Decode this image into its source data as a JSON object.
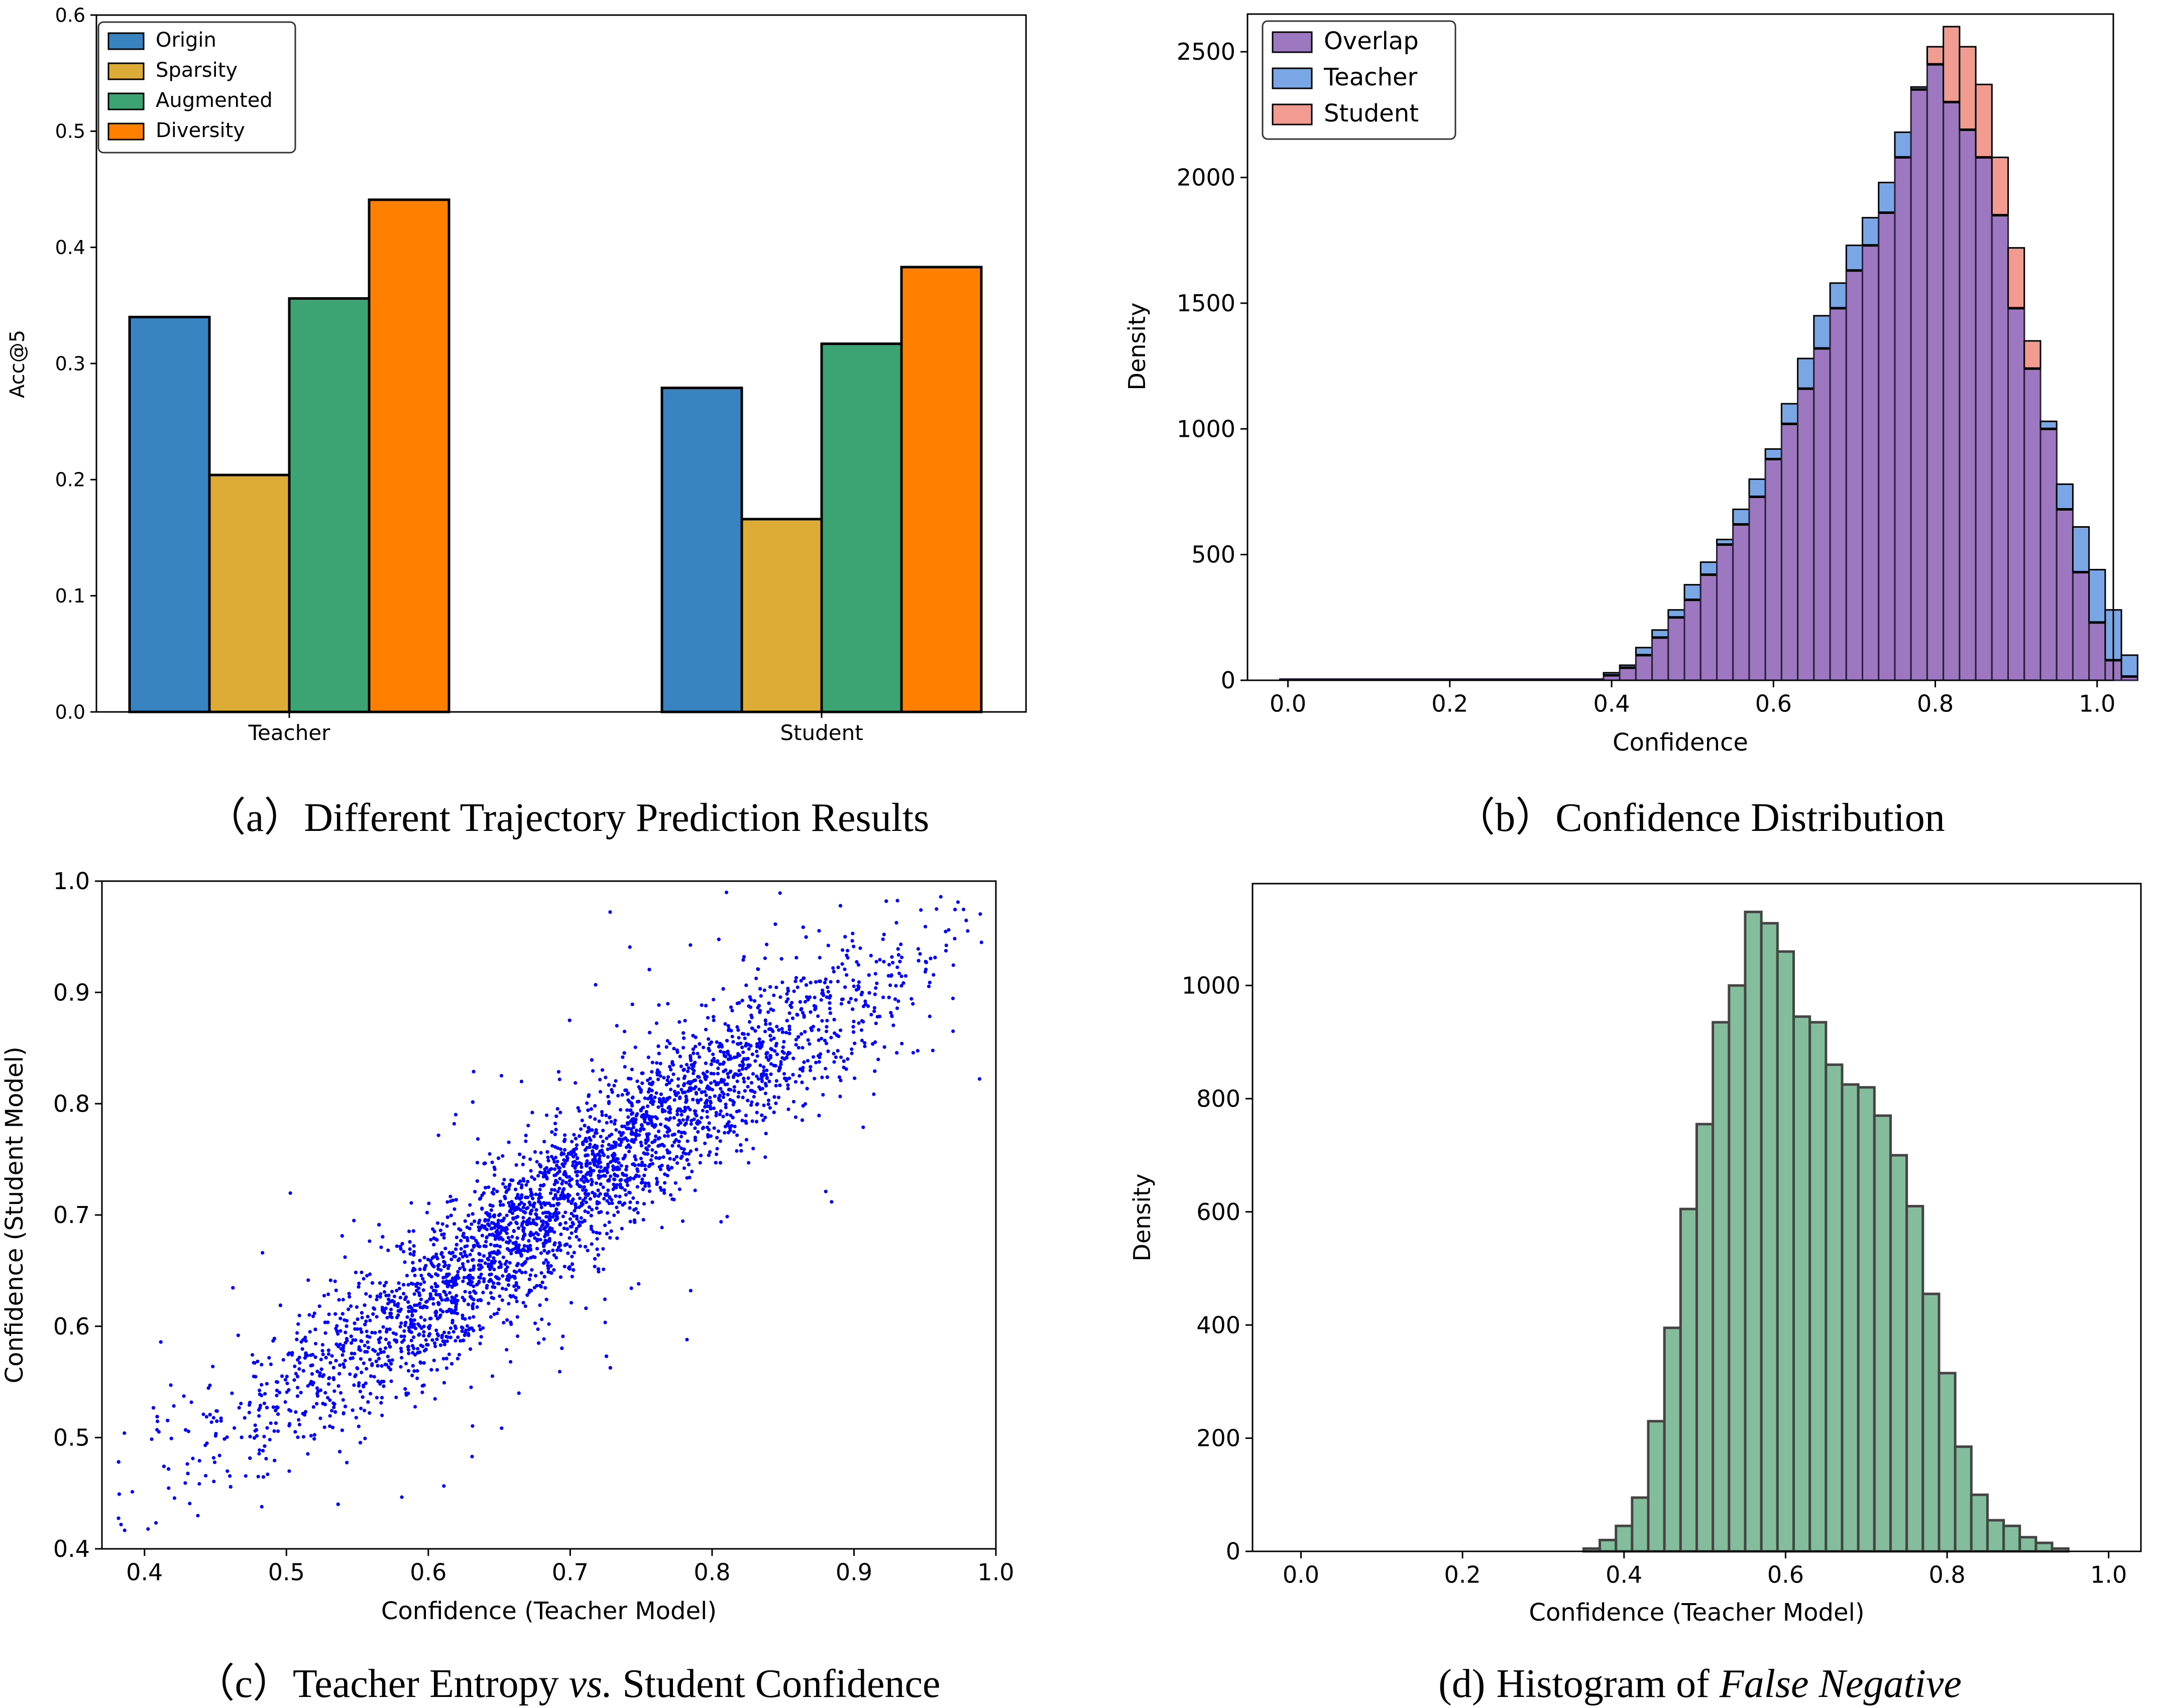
{
  "colors": {
    "origin": "#3a83c1",
    "sparsity": "#dcac36",
    "augmented": "#3ca373",
    "diversity": "#ff8000",
    "overlap": "#9d77c0",
    "teacher": "#7aa6e6",
    "student": "#f29b90",
    "false_negative": "#84bd9c",
    "scatter": "#0000ff"
  },
  "captions": {
    "a": {
      "label": "（a）",
      "text": "Different Trajectory Prediction Results"
    },
    "b": {
      "label": "（b）",
      "text": "Confidence Distribution"
    },
    "c": {
      "label": "（c）",
      "pre": "Teacher Entropy ",
      "italic": "vs.",
      "post": " Student Confidence"
    },
    "d": {
      "label": "(d)",
      "pre": "Histogram of ",
      "italic": "False Negative"
    }
  },
  "chart_data": [
    {
      "id": "a",
      "type": "bar",
      "title": "",
      "xlabel": "",
      "ylabel": "Acc@5",
      "categories": [
        "Teacher",
        "Student"
      ],
      "ylim": [
        0,
        0.6
      ],
      "yticks": [
        "0.0",
        "0.1",
        "0.2",
        "0.3",
        "0.4",
        "0.5",
        "0.6"
      ],
      "legend": "top-left",
      "series": [
        {
          "name": "Origin",
          "values": [
            0.34,
            0.279
          ]
        },
        {
          "name": "Sparsity",
          "values": [
            0.204,
            0.166
          ]
        },
        {
          "name": "Augmented",
          "values": [
            0.356,
            0.317
          ]
        },
        {
          "name": "Diversity",
          "values": [
            0.441,
            0.383
          ]
        }
      ]
    },
    {
      "id": "b",
      "type": "bar",
      "title": "",
      "xlabel": "Confidence",
      "ylabel": "Density",
      "xlim": [
        -0.05,
        1.02
      ],
      "ylim": [
        0,
        2650
      ],
      "xticks": [
        "0.0",
        "0.2",
        "0.4",
        "0.6",
        "0.8",
        "1.0"
      ],
      "yticks": [
        "0",
        "500",
        "1000",
        "1500",
        "2000",
        "2500"
      ],
      "legend": "top-left",
      "legend_entries": [
        "Overlap",
        "Teacher",
        "Student"
      ],
      "bin_start": 0.39,
      "bin_width": 0.02,
      "teacher_low_bins": {
        "start": -0.01,
        "end": 0.39,
        "value": 5
      },
      "series": [
        {
          "name": "Teacher",
          "values": [
            30,
            60,
            130,
            200,
            280,
            380,
            470,
            560,
            680,
            800,
            920,
            1100,
            1280,
            1450,
            1580,
            1730,
            1840,
            1980,
            2180,
            2360,
            2450,
            2300,
            2190,
            2080,
            1850,
            1480,
            1240,
            1030,
            780,
            610,
            440,
            280,
            100
          ]
        },
        {
          "name": "Student",
          "values": [
            20,
            50,
            100,
            170,
            250,
            320,
            420,
            540,
            620,
            730,
            880,
            1020,
            1160,
            1320,
            1480,
            1630,
            1730,
            1860,
            2080,
            2350,
            2520,
            2600,
            2520,
            2370,
            2080,
            1720,
            1350,
            1000,
            680,
            430,
            230,
            80,
            15
          ]
        }
      ]
    },
    {
      "id": "c",
      "type": "scatter",
      "title": "",
      "xlabel": "Confidence (Teacher Model)",
      "ylabel": "Confidence (Student Model)",
      "xlim": [
        0.37,
        1.0
      ],
      "ylim": [
        0.4,
        1.0
      ],
      "xticks": [
        "0.4",
        "0.5",
        "0.6",
        "0.7",
        "0.8",
        "0.9",
        "1.0"
      ],
      "yticks": [
        "0.4",
        "0.5",
        "0.6",
        "0.7",
        "0.8",
        "0.9",
        "1.0"
      ],
      "trend": [
        [
          0.38,
          0.44
        ],
        [
          0.45,
          0.5
        ],
        [
          0.5,
          0.54
        ],
        [
          0.55,
          0.58
        ],
        [
          0.6,
          0.62
        ],
        [
          0.65,
          0.67
        ],
        [
          0.7,
          0.72
        ],
        [
          0.75,
          0.77
        ],
        [
          0.8,
          0.81
        ],
        [
          0.85,
          0.85
        ],
        [
          0.9,
          0.89
        ],
        [
          0.95,
          0.93
        ],
        [
          0.99,
          0.98
        ]
      ]
    },
    {
      "id": "d",
      "type": "bar",
      "title": "",
      "xlabel": "Confidence (Teacher Model)",
      "ylabel": "Density",
      "xlim": [
        -0.06,
        1.04
      ],
      "ylim": [
        0,
        1180
      ],
      "xticks": [
        "0.0",
        "0.2",
        "0.4",
        "0.6",
        "0.8",
        "1.0"
      ],
      "yticks": [
        "0",
        "200",
        "400",
        "600",
        "800",
        "1000"
      ],
      "legend": "none",
      "bin_start": 0.35,
      "bin_width": 0.02,
      "series": [
        {
          "name": "",
          "values": [
            5,
            20,
            45,
            95,
            230,
            395,
            605,
            755,
            935,
            1000,
            1130,
            1110,
            1060,
            945,
            935,
            860,
            825,
            820,
            770,
            700,
            610,
            455,
            315,
            185,
            100,
            55,
            45,
            25,
            15,
            5
          ]
        }
      ]
    }
  ]
}
